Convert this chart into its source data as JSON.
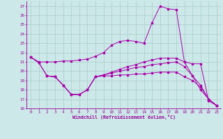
{
  "xlabel": "Windchill (Refroidissement éolien,°C)",
  "bg_color": "#cce8e8",
  "line_color": "#aa00aa",
  "grid_color": "#aacccc",
  "xlim": [
    -0.5,
    23.5
  ],
  "ylim": [
    16,
    27.5
  ],
  "yticks": [
    16,
    17,
    18,
    19,
    20,
    21,
    22,
    23,
    24,
    25,
    26,
    27
  ],
  "xticks": [
    0,
    1,
    2,
    3,
    4,
    5,
    6,
    7,
    8,
    9,
    10,
    11,
    12,
    13,
    14,
    15,
    16,
    17,
    18,
    19,
    20,
    21,
    22,
    23
  ],
  "line1_x": [
    0,
    1,
    2,
    3,
    4,
    5,
    6,
    7,
    8,
    9,
    10,
    11,
    12,
    13,
    14,
    15,
    16,
    17,
    18,
    19,
    20,
    21,
    22,
    23
  ],
  "line1_y": [
    21.5,
    21.0,
    21.0,
    21.0,
    21.1,
    21.1,
    21.2,
    21.3,
    21.6,
    22.0,
    22.8,
    23.2,
    23.3,
    23.2,
    23.0,
    25.2,
    27.0,
    26.7,
    26.6,
    21.0,
    20.8,
    20.8,
    16.8,
    16.3
  ],
  "line2_x": [
    0,
    1,
    2,
    3,
    4,
    5,
    6,
    7,
    8,
    9,
    10,
    11,
    12,
    13,
    14,
    15,
    16,
    17,
    18,
    19,
    20,
    21,
    22,
    23
  ],
  "line2_y": [
    21.5,
    20.9,
    19.5,
    19.4,
    18.5,
    17.5,
    17.5,
    18.0,
    19.4,
    19.5,
    19.5,
    19.6,
    19.6,
    19.7,
    19.7,
    19.8,
    19.9,
    19.9,
    19.9,
    19.4,
    19.0,
    18.3,
    17.0,
    16.3
  ],
  "line3_x": [
    0,
    1,
    2,
    3,
    4,
    5,
    6,
    7,
    8,
    9,
    10,
    11,
    12,
    13,
    14,
    15,
    16,
    17,
    18,
    19,
    20,
    21,
    22,
    23
  ],
  "line3_y": [
    21.5,
    20.9,
    19.5,
    19.4,
    18.5,
    17.5,
    17.5,
    18.0,
    19.4,
    19.6,
    19.8,
    20.0,
    20.2,
    20.4,
    20.5,
    20.7,
    20.8,
    20.9,
    21.0,
    20.5,
    19.5,
    18.0,
    17.0,
    16.3
  ],
  "line4_x": [
    2,
    3,
    4,
    5,
    6,
    7,
    8,
    9,
    10,
    11,
    12,
    13,
    14,
    15,
    16,
    17,
    18,
    19,
    20,
    21,
    22,
    23
  ],
  "line4_y": [
    19.5,
    19.4,
    18.5,
    17.5,
    17.5,
    18.0,
    19.4,
    19.6,
    19.9,
    20.2,
    20.5,
    20.7,
    21.0,
    21.2,
    21.4,
    21.4,
    21.4,
    21.0,
    19.5,
    18.5,
    17.0,
    16.3
  ]
}
